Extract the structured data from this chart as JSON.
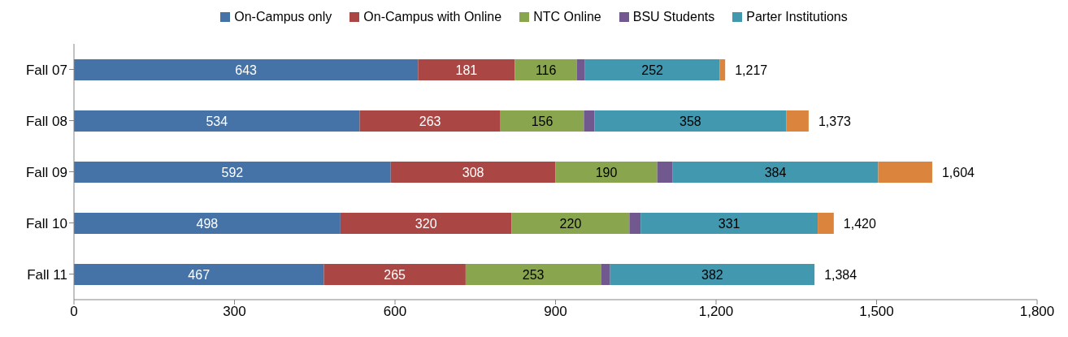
{
  "chart_data": {
    "type": "bar",
    "orientation": "horizontal",
    "stacked": true,
    "legend": "top",
    "grid": false,
    "categories": [
      "Fall 07",
      "Fall 08",
      "Fall 09",
      "Fall 10",
      "Fall 11"
    ],
    "series": [
      {
        "name": "On-Campus only",
        "color": "#4572a7",
        "values": [
          643,
          534,
          592,
          498,
          467
        ],
        "value_labels": [
          "643",
          "534",
          "592",
          "498",
          "467"
        ]
      },
      {
        "name": "On-Campus with Online",
        "color": "#aa4643",
        "values": [
          181,
          263,
          308,
          320,
          265
        ],
        "value_labels": [
          "181",
          "263",
          "308",
          "320",
          "265"
        ]
      },
      {
        "name": "NTC Online",
        "color": "#89a54e",
        "values": [
          116,
          156,
          190,
          220,
          253
        ],
        "value_labels": [
          "116",
          "156",
          "190",
          "220",
          "253"
        ]
      },
      {
        "name": "BSU Students",
        "color": "#71588f",
        "values": [
          15,
          20,
          29,
          21,
          17
        ],
        "value_labels": [
          null,
          null,
          null,
          null,
          null
        ]
      },
      {
        "name": "Parter Institutions",
        "color": "#4198af",
        "values": [
          252,
          358,
          384,
          331,
          382
        ],
        "value_labels": [
          "252",
          "358",
          "384",
          "331",
          "382"
        ]
      },
      {
        "color": "#db843d",
        "values": [
          10,
          42,
          101,
          30,
          0
        ],
        "value_labels": [
          null,
          null,
          null,
          null,
          null
        ]
      }
    ],
    "totals": [
      "1,217",
      "1,373",
      "1,604",
      "1,420",
      "1,384"
    ],
    "xlim": [
      0,
      1800
    ],
    "xticks": [
      0,
      300,
      600,
      900,
      {
        "value": 1200,
        "label": "1,200"
      },
      {
        "value": 1500,
        "label": "1,500"
      },
      {
        "value": 1800,
        "label": "1,800"
      }
    ]
  }
}
